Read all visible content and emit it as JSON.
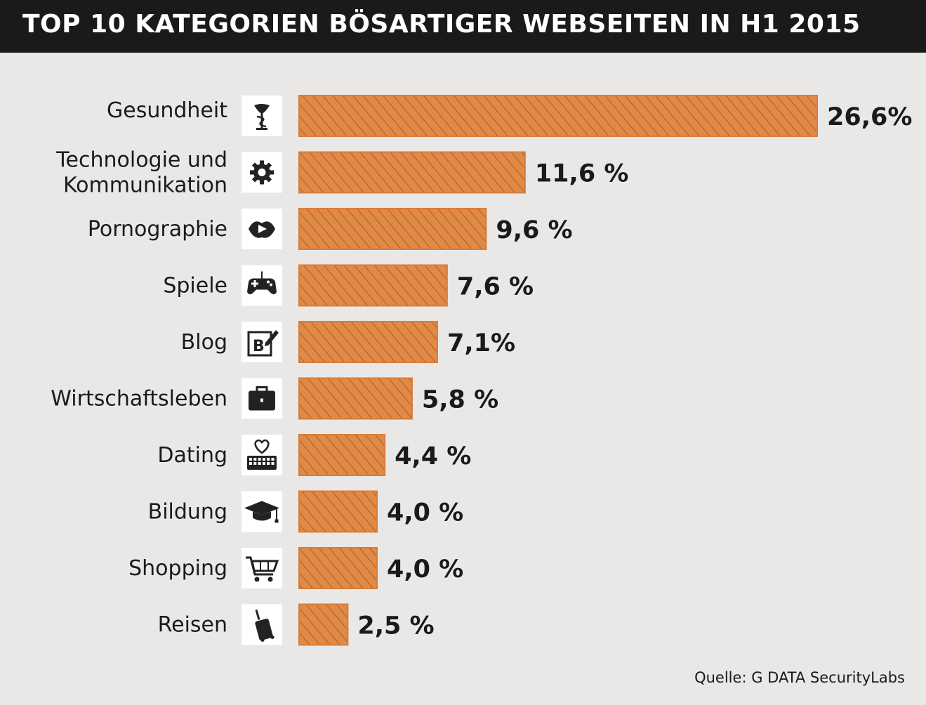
{
  "chart_data": {
    "type": "bar",
    "orientation": "horizontal",
    "title": "TOP 10 KATEGORIEN BÖSARTIGER WEBSEITEN IN H1 2015",
    "xlim": [
      0,
      26.6
    ],
    "categories": [
      {
        "lines": [
          "Gesundheit"
        ],
        "icon": "caduceus-icon"
      },
      {
        "lines": [
          "Technologie und",
          "Kommunikation"
        ],
        "icon": "gear-icon"
      },
      {
        "lines": [
          "Pornographie"
        ],
        "icon": "lips-icon"
      },
      {
        "lines": [
          "Spiele"
        ],
        "icon": "gamepad-icon"
      },
      {
        "lines": [
          "Blog"
        ],
        "icon": "blog-edit-icon"
      },
      {
        "lines": [
          "Wirtschaftsleben"
        ],
        "icon": "briefcase-icon"
      },
      {
        "lines": [
          "Dating"
        ],
        "icon": "heart-keyboard-icon"
      },
      {
        "lines": [
          "Bildung"
        ],
        "icon": "graduation-cap-icon"
      },
      {
        "lines": [
          "Shopping"
        ],
        "icon": "shopping-cart-icon"
      },
      {
        "lines": [
          "Reisen"
        ],
        "icon": "luggage-icon"
      }
    ],
    "values": [
      26.6,
      11.6,
      9.6,
      7.6,
      7.1,
      5.8,
      4.4,
      4.0,
      4.0,
      2.5
    ],
    "value_labels": [
      "26,6%",
      "11,6 %",
      "9,6 %",
      "7,6 %",
      "7,1%",
      "5,8 %",
      "4,4 %",
      "4,0 %",
      "4,0 %",
      "2,5 %"
    ],
    "bar_color": "#e08a47",
    "hatch_color": "#b8632a"
  },
  "source": "Quelle: G DATA SecurityLabs"
}
